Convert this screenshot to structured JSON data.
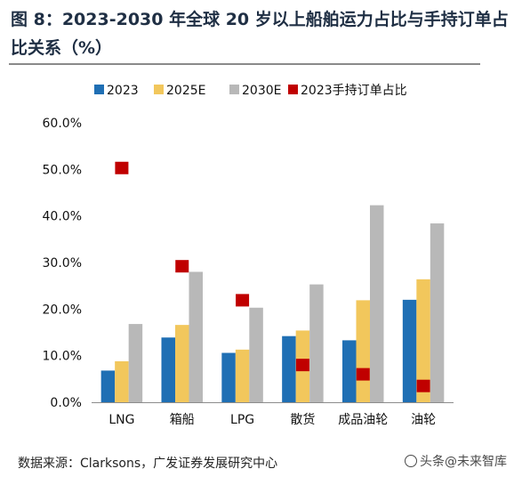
{
  "title": "图 8：2023-2030 年全球 20 岁以上船舶运力占比与手持订单占比关系（%）",
  "source": "数据来源：Clarksons，广发证券发展研究中心",
  "watermark": "头条@未来智库",
  "colors": {
    "2023": "#1f6fb4",
    "2025E": "#f2c75c",
    "2030E": "#b8b8b8",
    "orders": "#c00000"
  },
  "chart_data": {
    "type": "bar",
    "categories": [
      "LNG",
      "箱船",
      "LPG",
      "散货",
      "成品油轮",
      "油轮"
    ],
    "series": [
      {
        "name": "2023",
        "type": "bar",
        "values": [
          6.8,
          13.9,
          10.6,
          14.2,
          13.3,
          22.0
        ]
      },
      {
        "name": "2025E",
        "type": "bar",
        "values": [
          8.8,
          16.6,
          11.3,
          15.4,
          21.9,
          26.4
        ]
      },
      {
        "name": "2030E",
        "type": "bar",
        "values": [
          16.8,
          28.0,
          20.3,
          25.3,
          42.3,
          38.4
        ]
      },
      {
        "name": "2023手持订单占比",
        "type": "scatter",
        "values": [
          50.3,
          29.2,
          21.9,
          8.0,
          6.0,
          3.5
        ]
      }
    ],
    "ylim": [
      0,
      60
    ],
    "yticks": [
      "0.0%",
      "10.0%",
      "20.0%",
      "30.0%",
      "40.0%",
      "50.0%",
      "60.0%"
    ],
    "legend": "top",
    "grid": false
  }
}
